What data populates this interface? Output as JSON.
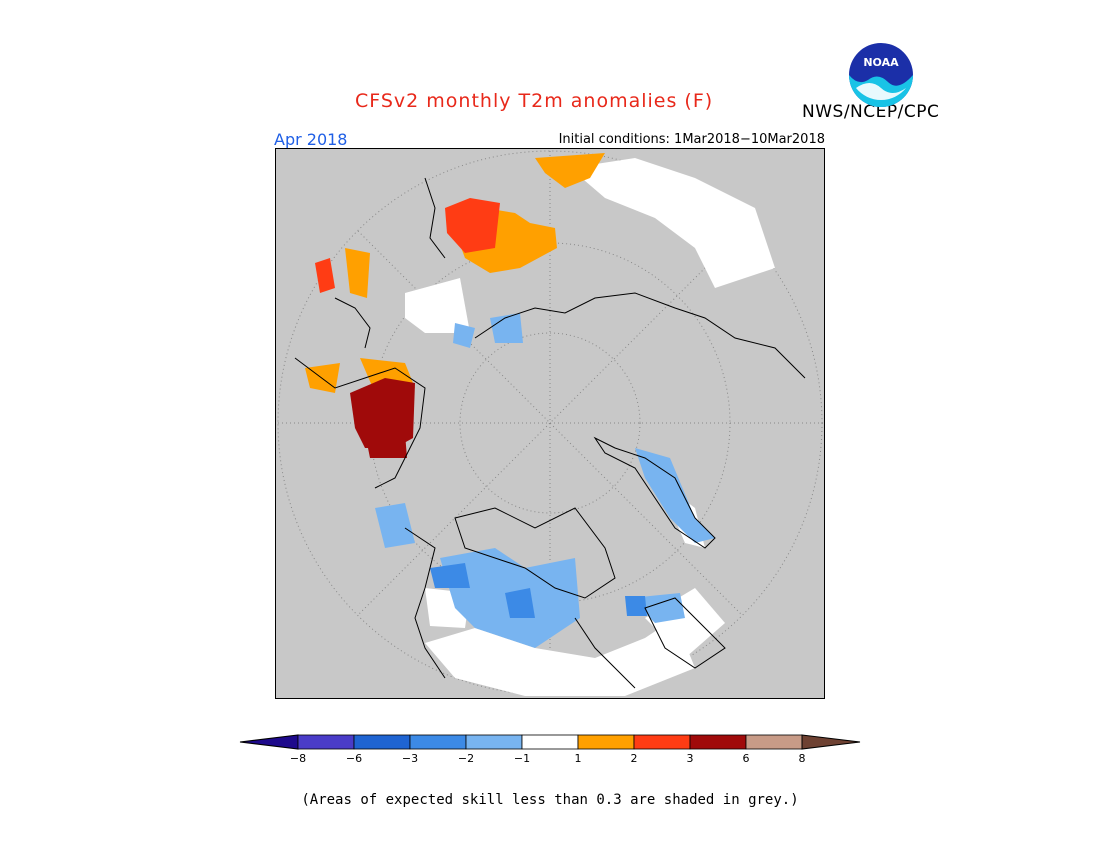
{
  "header": {
    "title": "CFSv2 monthly T2m anomalies (F)",
    "agency": "NWS/NCEP/CPC",
    "valid_month": "Apr 2018",
    "initial_conditions": "Initial conditions: 1Mar2018−10Mar2018",
    "logo_text": "NOAA"
  },
  "legend": {
    "colors": [
      "#1e0a8c",
      "#4a3cc8",
      "#1f64d2",
      "#3c8ae6",
      "#78b4f0",
      "#ffffff",
      "#ffa000",
      "#ff3c14",
      "#a00a0a",
      "#c89b87",
      "#6e4132"
    ],
    "ticks": [
      "−8",
      "−6",
      "−3",
      "−2",
      "−1",
      "1",
      "2",
      "3",
      "6",
      "8"
    ]
  },
  "map": {
    "background": "#c8c8c8",
    "unskilled_color": "#c8c8c8"
  },
  "footnote": "(Areas of expected skill less than 0.3 are shaded in grey.)"
}
